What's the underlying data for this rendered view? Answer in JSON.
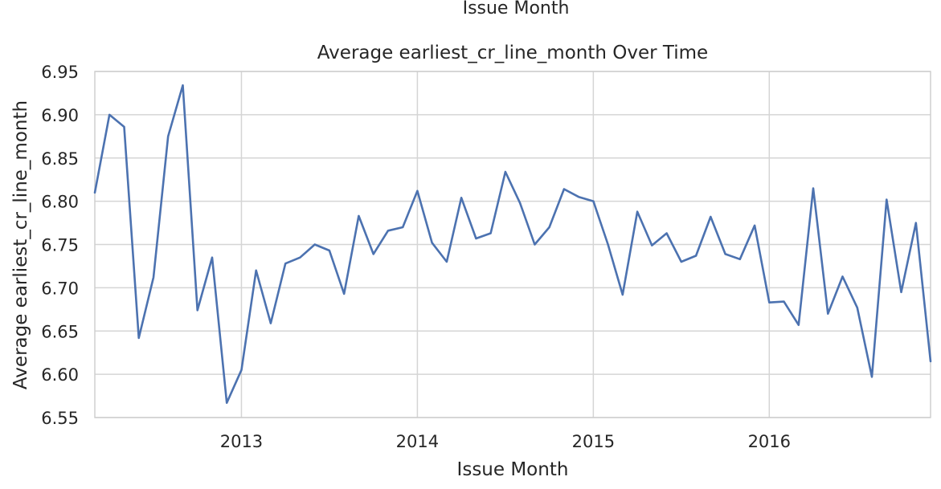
{
  "header": {
    "clipped_label": "Issue Month"
  },
  "chart_data": {
    "type": "line",
    "title": "Average earliest_cr_line_month Over Time",
    "xlabel": "Issue Month",
    "ylabel": "Average earliest_cr_line_month",
    "xlim": [
      "2012-03",
      "2016-12"
    ],
    "ylim": [
      6.55,
      6.95
    ],
    "yticks": [
      "6.55",
      "6.60",
      "6.65",
      "6.70",
      "6.75",
      "6.80",
      "6.85",
      "6.90",
      "6.95"
    ],
    "xticks": [
      {
        "label": "2013",
        "date": "2013-01"
      },
      {
        "label": "2014",
        "date": "2014-01"
      },
      {
        "label": "2015",
        "date": "2015-01"
      },
      {
        "label": "2016",
        "date": "2016-01"
      }
    ],
    "grid": true,
    "line_color": "#4c72b0",
    "grid_color": "#d5d5d5",
    "x": [
      "2012-03",
      "2012-04",
      "2012-05",
      "2012-06",
      "2012-07",
      "2012-08",
      "2012-09",
      "2012-10",
      "2012-11",
      "2012-12",
      "2013-01",
      "2013-02",
      "2013-03",
      "2013-04",
      "2013-05",
      "2013-06",
      "2013-07",
      "2013-08",
      "2013-09",
      "2013-10",
      "2013-11",
      "2013-12",
      "2014-01",
      "2014-02",
      "2014-03",
      "2014-04",
      "2014-05",
      "2014-06",
      "2014-07",
      "2014-08",
      "2014-09",
      "2014-10",
      "2014-11",
      "2014-12",
      "2015-01",
      "2015-02",
      "2015-03",
      "2015-04",
      "2015-05",
      "2015-06",
      "2015-07",
      "2015-08",
      "2015-09",
      "2015-10",
      "2015-11",
      "2015-12",
      "2016-01",
      "2016-02",
      "2016-03",
      "2016-04",
      "2016-05",
      "2016-06",
      "2016-07",
      "2016-08",
      "2016-09",
      "2016-10",
      "2016-11",
      "2016-12"
    ],
    "values": [
      6.81,
      6.9,
      6.886,
      6.642,
      6.712,
      6.875,
      6.934,
      6.674,
      6.735,
      6.567,
      6.605,
      6.72,
      6.659,
      6.728,
      6.735,
      6.75,
      6.743,
      6.693,
      6.783,
      6.739,
      6.766,
      6.77,
      6.812,
      6.752,
      6.73,
      6.804,
      6.757,
      6.763,
      6.834,
      6.798,
      6.75,
      6.77,
      6.814,
      6.805,
      6.8,
      6.75,
      6.692,
      6.788,
      6.749,
      6.763,
      6.73,
      6.737,
      6.782,
      6.739,
      6.733,
      6.772,
      6.683,
      6.684,
      6.657,
      6.815,
      6.67,
      6.713,
      6.677,
      6.597,
      6.802,
      6.695,
      6.775,
      6.615
    ]
  }
}
